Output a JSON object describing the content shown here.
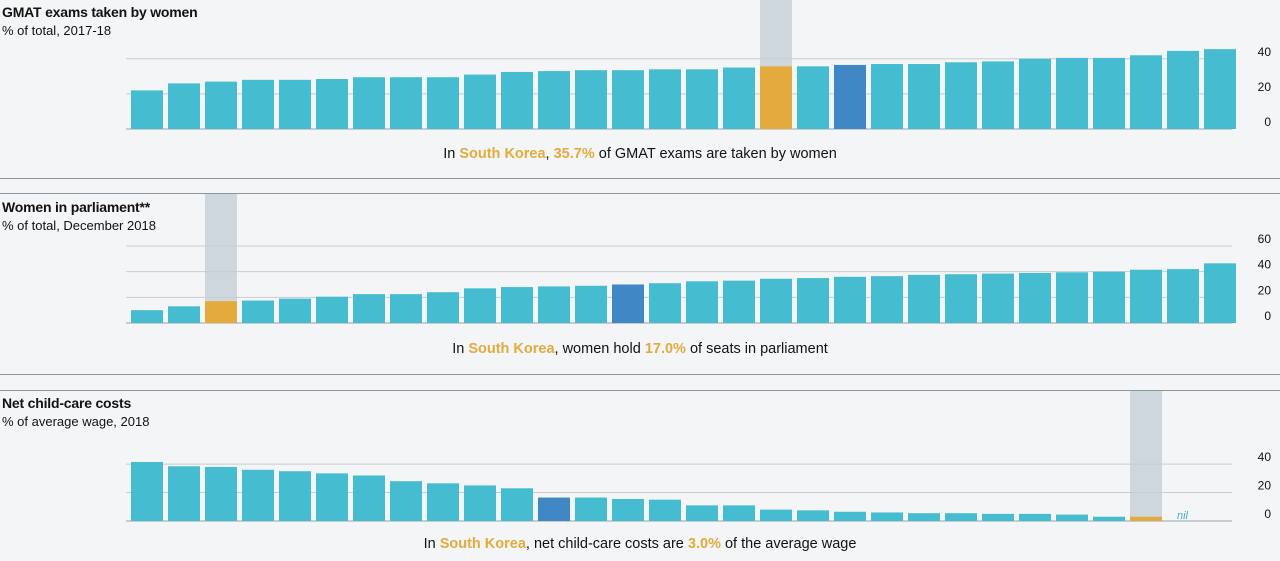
{
  "colors": {
    "bar": "#46bcd0",
    "highlight_country": "#e3ab3d",
    "highlight_avg": "#3f88c5",
    "highlight_band": "#cfd7de",
    "grid": "#c7cdd2",
    "separator": "#8a979e"
  },
  "panels": [
    {
      "title": "GMAT exams taken by women",
      "subtitle": "% of total, 2017-18",
      "caption": {
        "pre": "In ",
        "country": "South Korea",
        "mid": ", ",
        "value": "35.7%",
        "post": " of GMAT exams are taken by women"
      }
    },
    {
      "title": "Women in parliament**",
      "subtitle": "% of total, December 2018",
      "caption": {
        "pre": "In ",
        "country": "South Korea",
        "mid": ", women hold ",
        "value": "17.0%",
        "post": " of seats in parliament"
      }
    },
    {
      "title": "Net child-care costs",
      "subtitle": "% of average wage, 2018",
      "caption": {
        "pre": "In ",
        "country": "South Korea",
        "mid": ", net child-care costs are ",
        "value": "3.0%",
        "post": " of the average wage"
      }
    }
  ],
  "chart_data": [
    {
      "type": "bar",
      "title": "GMAT exams taken by women",
      "subtitle": "% of total, 2017-18",
      "ylim": [
        0,
        45
      ],
      "yticks": [
        0,
        20,
        40
      ],
      "grid": true,
      "values": [
        22,
        26,
        27,
        28,
        28,
        28.5,
        29.5,
        29.5,
        29.5,
        31,
        32.5,
        33,
        33.5,
        33.5,
        34,
        34,
        35,
        35.7,
        35.7,
        36.5,
        37,
        37,
        38,
        38.5,
        40,
        40.5,
        40.5,
        42,
        44.5,
        45.5
      ],
      "highlight_index": 17,
      "average_index": 19
    },
    {
      "type": "bar",
      "title": "Women in parliament**",
      "subtitle": "% of total, December 2018",
      "ylim": [
        0,
        60
      ],
      "yticks": [
        0,
        20,
        40,
        60
      ],
      "grid": true,
      "values": [
        10,
        13,
        17,
        17.5,
        19,
        20.5,
        22.5,
        22.5,
        24,
        27,
        28,
        28.5,
        29,
        30,
        31,
        32.5,
        33,
        34.5,
        35,
        36,
        36.5,
        37.5,
        38,
        38.5,
        39,
        39.5,
        40,
        41.5,
        42,
        46.5
      ],
      "highlight_index": 2,
      "average_index": 13
    },
    {
      "type": "bar",
      "title": "Net child-care costs",
      "subtitle": "% of average wage, 2018",
      "ylim": [
        0,
        45
      ],
      "yticks": [
        0,
        20,
        40
      ],
      "grid": true,
      "values": [
        41.5,
        38.5,
        38,
        36,
        35,
        33.5,
        32,
        28,
        26.5,
        25,
        23,
        16.5,
        16.5,
        15.5,
        15,
        11,
        11,
        8,
        7.5,
        6.5,
        6,
        5.5,
        5.5,
        5,
        5,
        4.5,
        3,
        3,
        0
      ],
      "highlight_index": 27,
      "average_index": 11,
      "annotations": [
        {
          "index": 28,
          "text": "nil"
        }
      ]
    }
  ]
}
